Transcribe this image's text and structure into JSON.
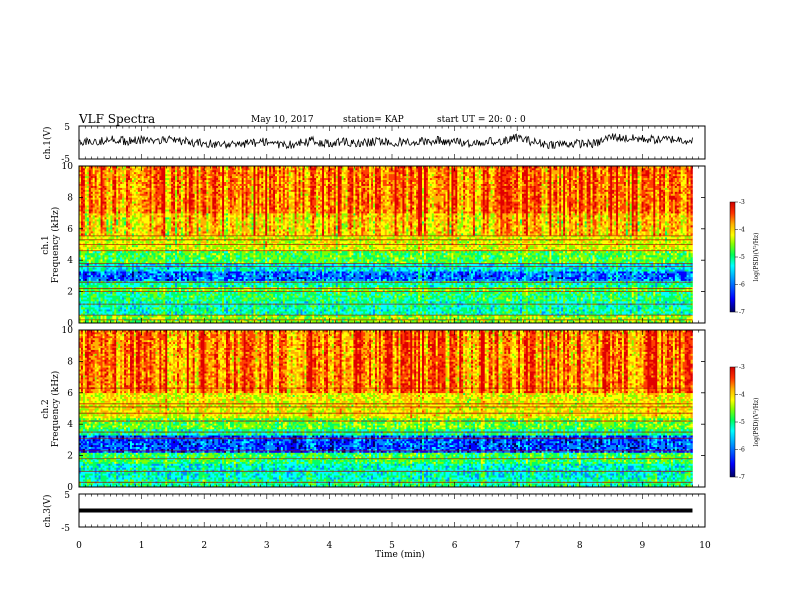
{
  "header": {
    "title": "VLF Spectra",
    "date": "May 10, 2017",
    "station": "station= KAP",
    "start": "start  UT  =   20: 0  : 0"
  },
  "colors": {
    "scale": [
      "#000060",
      "#0000ff",
      "#0088ff",
      "#00ffff",
      "#00ff66",
      "#7fff00",
      "#ffff00",
      "#ffb000",
      "#ff4000",
      "#e00000"
    ]
  },
  "chart_data": [
    {
      "type": "line",
      "name": "ch1_waveform",
      "ylabel": "ch.1(V)",
      "ylim": [
        -5,
        5
      ],
      "yticks": [
        "5",
        "-5"
      ],
      "xlim": [
        0,
        10
      ],
      "x": [
        0,
        0.25,
        0.5,
        0.75,
        1,
        1.25,
        1.5,
        1.75,
        2,
        2.25,
        2.5,
        2.75,
        3,
        3.25,
        3.5,
        3.75,
        4,
        4.25,
        4.5,
        4.75,
        5,
        5.25,
        5.5,
        5.75,
        6,
        6.25,
        6.5,
        6.75,
        7,
        7.25,
        7.5,
        7.75,
        8,
        8.25,
        8.5,
        8.75,
        9,
        9.25,
        9.5,
        9.75,
        9.8
      ],
      "y": [
        0.5,
        0.3,
        1.0,
        0.4,
        0.8,
        0.2,
        0.9,
        0.1,
        -0.2,
        -0.6,
        -0.9,
        -0.2,
        0.3,
        -1.0,
        -0.3,
        0.6,
        -0.5,
        0.2,
        -0.4,
        0.4,
        0.0,
        0.3,
        0.4,
        0.6,
        0.2,
        -0.3,
        0.5,
        0.3,
        1.5,
        0.2,
        -0.6,
        -0.4,
        -0.3,
        -0.4,
        1.8,
        1.2,
        1.1,
        0.8,
        1.0,
        0.6,
        0.9
      ]
    },
    {
      "type": "heatmap",
      "name": "ch1_spectrogram",
      "ylabel": "ch.1",
      "ylabel2": "Frequency  (kHz)",
      "ylim": [
        0,
        10
      ],
      "yticks": [
        "0",
        "2",
        "4",
        "6",
        "8",
        "10"
      ],
      "xlim": [
        0,
        9.8
      ],
      "colorbar": {
        "label": "log(PSD)(V²/Hz)",
        "range": [
          -7,
          -3
        ],
        "ticks": [
          "-3",
          "-4",
          "-5",
          "-6",
          "-7"
        ]
      },
      "bands": [
        {
          "f0": 0.0,
          "f1": 0.5,
          "level": -4.8
        },
        {
          "f0": 0.5,
          "f1": 1.4,
          "level": -5.4
        },
        {
          "f0": 1.4,
          "f1": 2.0,
          "level": -5.2
        },
        {
          "f0": 2.0,
          "f1": 2.3,
          "level": -4.9
        },
        {
          "f0": 2.3,
          "f1": 2.7,
          "level": -5.4
        },
        {
          "f0": 2.7,
          "f1": 3.3,
          "level": -6.1
        },
        {
          "f0": 3.3,
          "f1": 3.8,
          "level": -5.6
        },
        {
          "f0": 3.8,
          "f1": 4.6,
          "level": -5.0
        },
        {
          "f0": 4.6,
          "f1": 5.6,
          "level": -4.5
        },
        {
          "f0": 5.6,
          "f1": 7.0,
          "level": -4.2
        },
        {
          "f0": 7.0,
          "f1": 10.0,
          "level": -3.8
        }
      ],
      "lines_khz": [
        0.2,
        0.5,
        1.2,
        2.0,
        2.2,
        2.6,
        3.6,
        3.8,
        4.6,
        5.0,
        5.3,
        5.55
      ]
    },
    {
      "type": "heatmap",
      "name": "ch2_spectrogram",
      "ylabel": "ch.2",
      "ylabel2": "Frequency  (kHz)",
      "ylim": [
        0,
        10
      ],
      "yticks": [
        "0",
        "2",
        "4",
        "6",
        "8",
        "10"
      ],
      "xlim": [
        0,
        9.8
      ],
      "colorbar": {
        "label": "log(PSD)(V²/Hz)",
        "range": [
          -7,
          -3
        ],
        "ticks": [
          "-3",
          "-4",
          "-5",
          "-6",
          "-7"
        ]
      },
      "bands": [
        {
          "f0": 0.0,
          "f1": 0.5,
          "level": -5.3
        },
        {
          "f0": 0.5,
          "f1": 1.5,
          "level": -5.5
        },
        {
          "f0": 1.5,
          "f1": 2.2,
          "level": -5.1
        },
        {
          "f0": 2.2,
          "f1": 3.3,
          "level": -6.2
        },
        {
          "f0": 3.3,
          "f1": 3.7,
          "level": -5.3
        },
        {
          "f0": 3.7,
          "f1": 4.4,
          "level": -4.9
        },
        {
          "f0": 4.4,
          "f1": 6.0,
          "level": -4.4
        },
        {
          "f0": 6.0,
          "f1": 10.0,
          "level": -3.8
        }
      ],
      "lines_khz": [
        0.3,
        1.0,
        1.8,
        2.3,
        3.1,
        3.5,
        4.2,
        4.7,
        5.1,
        5.3,
        6.3
      ]
    },
    {
      "type": "line",
      "name": "ch3_waveform",
      "ylabel": "ch.3(V)",
      "ylim": [
        -5,
        5
      ],
      "yticks": [
        "5",
        "-5"
      ],
      "xlim": [
        0,
        10
      ],
      "x": [
        0,
        9.8
      ],
      "y": [
        0,
        0
      ]
    }
  ],
  "xaxis": {
    "label": "Time  (min)",
    "ticks": [
      "0",
      "1",
      "2",
      "3",
      "4",
      "5",
      "6",
      "7",
      "8",
      "9",
      "10"
    ]
  }
}
